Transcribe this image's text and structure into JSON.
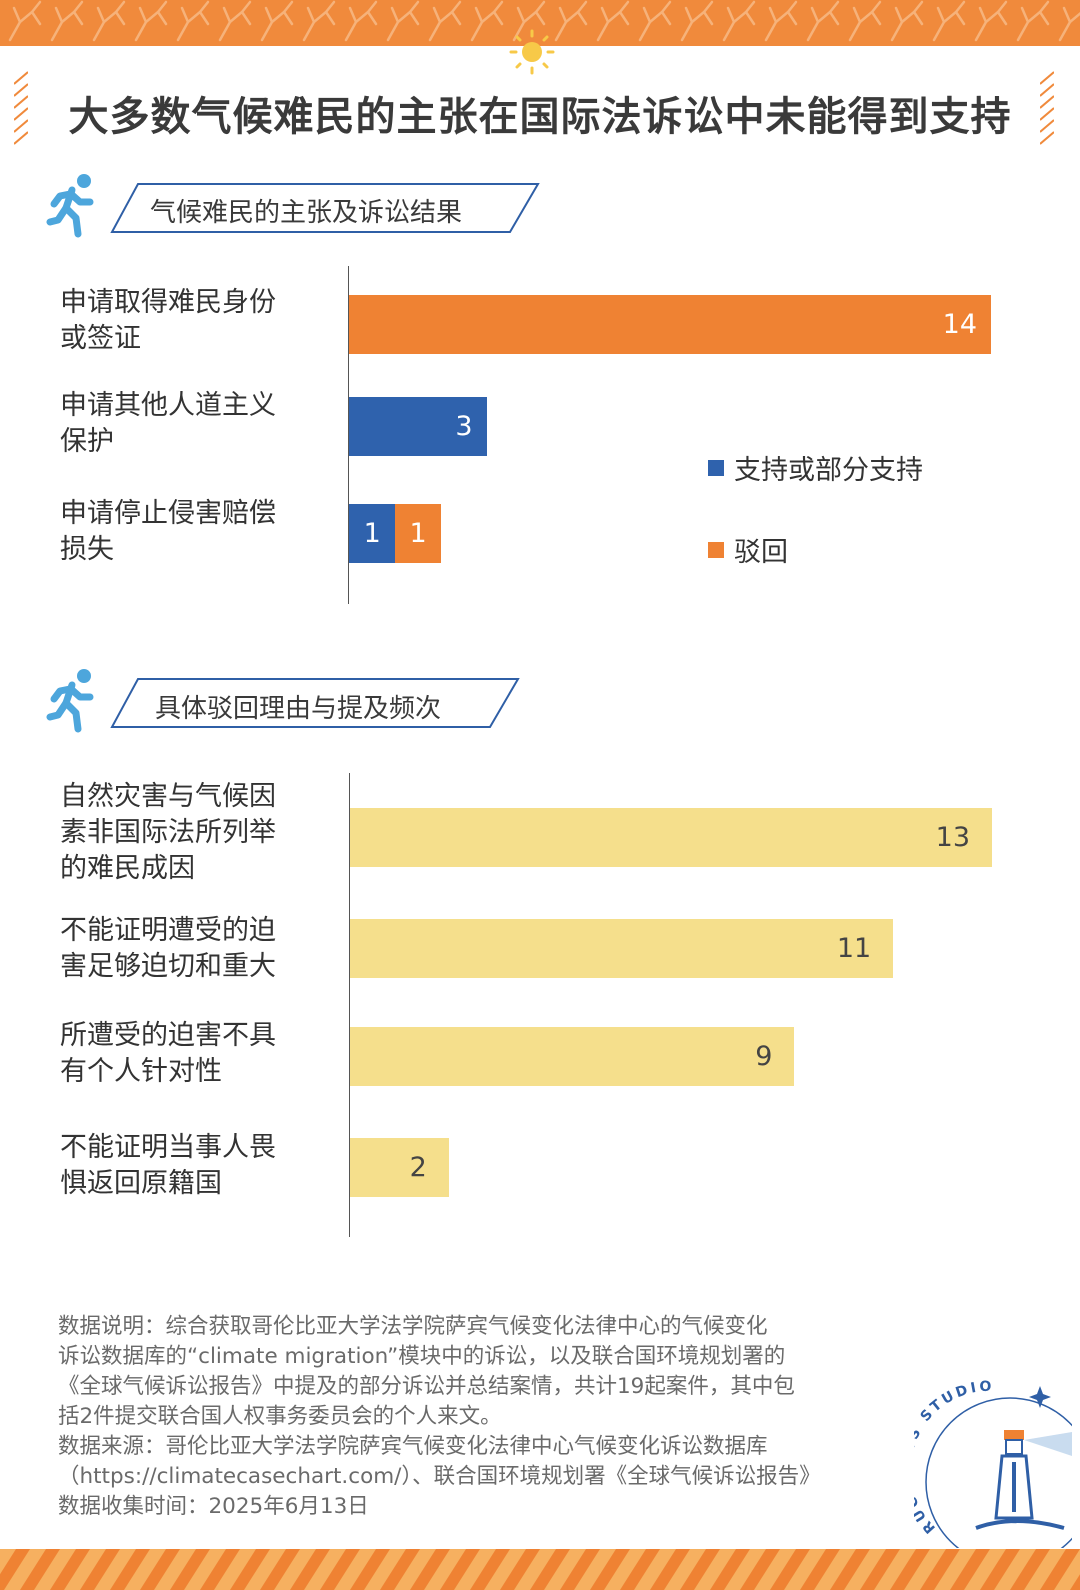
{
  "title": "大多数气候难民的主张在国际法诉讼中未能得到支持",
  "colors": {
    "band": "#f08a3c",
    "supported": "#2f62ad",
    "rejected": "#ef8233",
    "reasons": "#f5df8c",
    "banner_stroke": "#2f5fa6",
    "icon": "#4da6dc"
  },
  "icons": [
    "running-person-icon",
    "sun-icon",
    "ruc-news-studio-lighthouse-logo"
  ],
  "chart_data": [
    {
      "type": "bar",
      "orientation": "horizontal",
      "stacked": true,
      "title": "气候难民的主张及诉讼结果",
      "categories": [
        "申请取得难民身份或签证",
        "申请其他人道主义保护",
        "申请停止侵害赔偿损失"
      ],
      "series": [
        {
          "name": "支持或部分支持",
          "values": [
            0,
            3,
            1
          ]
        },
        {
          "name": "驳回",
          "values": [
            14,
            0,
            1
          ]
        }
      ],
      "xlim": [
        0,
        14
      ],
      "legend_position": "right",
      "grid": false
    },
    {
      "type": "bar",
      "orientation": "horizontal",
      "title": "具体驳回理由与提及频次",
      "categories": [
        "自然灾害与气候因素非国际法所列举的难民成因",
        "不能证明遭受的迫害足够迫切和重大",
        "所遭受的迫害不具有个人针对性",
        "不能证明当事人畏惧返回原籍国"
      ],
      "values": [
        13,
        11,
        9,
        2
      ],
      "xlim": [
        0,
        13
      ],
      "grid": false
    }
  ],
  "labels": {
    "chart1": [
      [
        "申请取得难民身份",
        "或签证"
      ],
      [
        "申请其他人道主义",
        "保护"
      ],
      [
        "申请停止侵害赔偿",
        "损失"
      ]
    ],
    "chart2": [
      [
        "自然灾害与气候因",
        "素非国际法所列举",
        "的难民成因"
      ],
      [
        "不能证明遭受的迫",
        "害足够迫切和重大"
      ],
      [
        "所遭受的迫害不具",
        "有个人针对性"
      ],
      [
        "不能证明当事人畏",
        "惧返回原籍国"
      ]
    ]
  },
  "notes": [
    "数据说明：综合获取哥伦比亚大学法学院萨宾气候变化法律中心的气候变化",
    "诉讼数据库的“climate migration”模块中的诉讼，以及联合国环境规划署的",
    "《全球气候诉讼报告》中提及的部分诉讼并总结案情，共计19起案件，其中包",
    "括2件提交联合国人权事务委员会的个人来文。",
    "数据来源：哥伦比亚大学法学院萨宾气候变化法律中心气候变化诉讼数据库",
    "（https://climatecasechart.com/）、联合国环境规划署《全球气候诉讼报告》",
    "数据收集时间：2025年6月13日"
  ],
  "logo_text": "RUC NEWS STUDIO"
}
